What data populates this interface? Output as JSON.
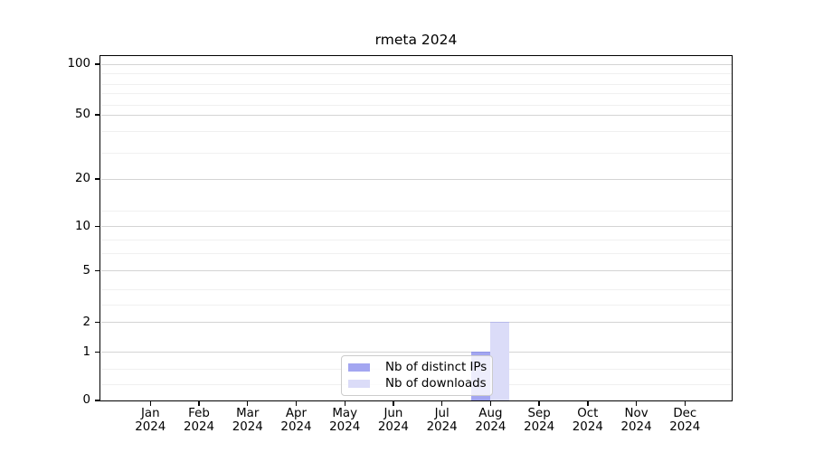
{
  "figure": {
    "title": "rmeta 2024",
    "background_color": "#ffffff"
  },
  "chart_data": {
    "type": "bar",
    "title": "rmeta 2024",
    "xlabel": "",
    "ylabel": "",
    "categories": [
      "Jan 2024",
      "Feb 2024",
      "Mar 2024",
      "Apr 2024",
      "May 2024",
      "Jun 2024",
      "Jul 2024",
      "Aug 2024",
      "Sep 2024",
      "Oct 2024",
      "Nov 2024",
      "Dec 2024"
    ],
    "series": [
      {
        "name": "Nb of distinct IPs",
        "color": "#a3a6f1",
        "values": [
          0,
          0,
          0,
          0,
          0,
          0,
          0,
          1,
          0,
          0,
          0,
          0
        ]
      },
      {
        "name": "Nb of downloads",
        "color": "#dbdcf8",
        "values": [
          0,
          0,
          0,
          0,
          0,
          0,
          0,
          2,
          0,
          0,
          0,
          0
        ]
      }
    ],
    "y_axis": {
      "scale": "log-like",
      "tick_values": [
        0,
        1,
        2,
        5,
        10,
        20,
        50,
        100
      ],
      "range_top": 110,
      "grid": "horizontal major and minor, light gray"
    },
    "x_axis": {
      "tick_label_line2": "2024",
      "months": [
        "Jan",
        "Feb",
        "Mar",
        "Apr",
        "May",
        "Jun",
        "Jul",
        "Aug",
        "Sep",
        "Oct",
        "Nov",
        "Dec"
      ]
    },
    "legend_position": "inside bottom-center",
    "annotations": []
  },
  "legend": {
    "items": [
      {
        "label": "Nb of distinct IPs",
        "color": "#a3a6f1"
      },
      {
        "label": "Nb of downloads",
        "color": "#dbdcf8"
      }
    ]
  }
}
